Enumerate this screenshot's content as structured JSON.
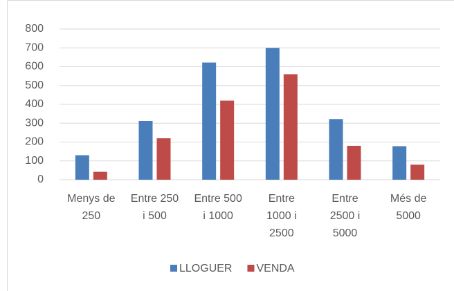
{
  "chart_data": {
    "type": "bar",
    "categories": [
      "Menys de 250",
      "Entre 250 i 500",
      "Entre 500 i 1000",
      "Entre 1000 i 2500",
      "Entre 2500 i 5000",
      "Més de 5000"
    ],
    "series": [
      {
        "name": "LLOGUER",
        "color": "#4a7ebb",
        "values": [
          130,
          312,
          622,
          700,
          322,
          178
        ]
      },
      {
        "name": "VENDA",
        "color": "#be4b48",
        "values": [
          42,
          220,
          420,
          560,
          180,
          80
        ]
      }
    ],
    "ylim": [
      0,
      800
    ],
    "yticks": [
      0,
      100,
      200,
      300,
      400,
      500,
      600,
      700,
      800
    ],
    "grid": true,
    "legend": "bottom"
  }
}
